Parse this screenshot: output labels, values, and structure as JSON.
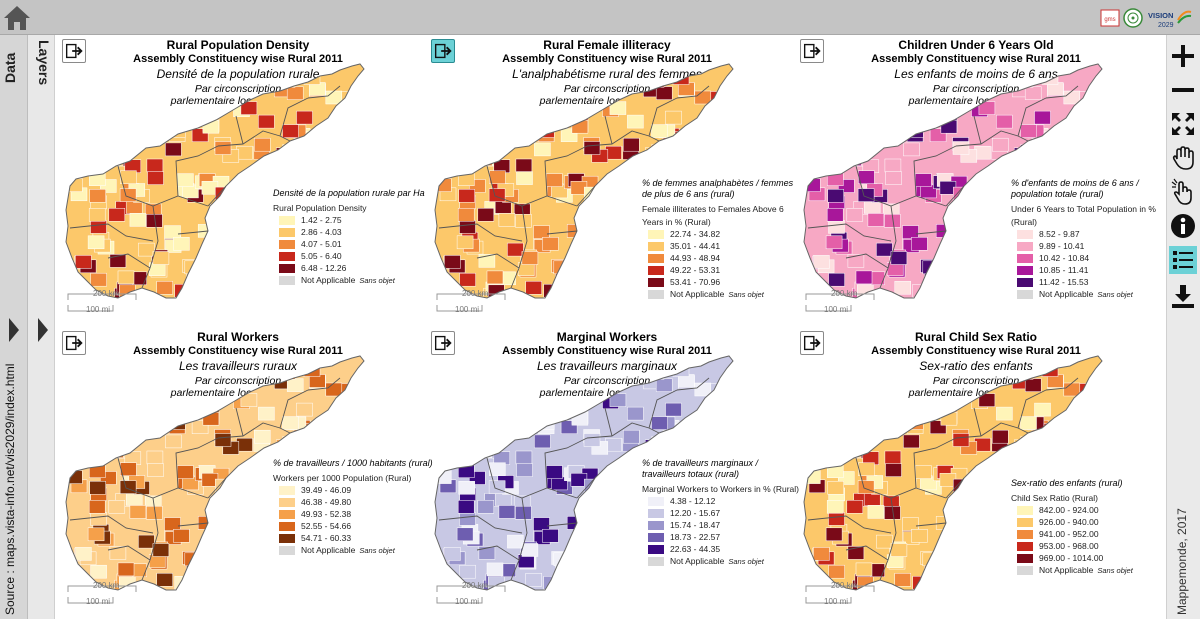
{
  "header": {
    "home_icon": "home-icon",
    "logos": [
      "gms-logo",
      "andhra-pradesh-emblem",
      "vision-2029-logo"
    ],
    "vision_label": "VISION",
    "vision_year": "2029",
    "gms_label": "gms"
  },
  "left_sidebar": {
    "data_tab": "Data",
    "layers_tab": "Layers",
    "source": "Source : maps.vista-info.net/vis2029/index.html"
  },
  "right_toolbar": {
    "tools": [
      "zoom-in-icon",
      "zoom-out-icon",
      "full-extent-icon",
      "pan-hand-icon",
      "identify-pointer-icon",
      "info-icon",
      "legend-list-icon",
      "download-icon"
    ],
    "credit": "Mappemonde, 2017"
  },
  "scale_bar": {
    "km": "200 km",
    "mi": "100 mi"
  },
  "panels": [
    {
      "title": "Rural Population Density",
      "subtitle": "Assembly Constituency wise Rural 2011",
      "title_fr": "Densité de la population rurale",
      "by_fr_1": "Par circonscription",
      "by_fr_2": "parlementaire locale en 2011",
      "legend_fr": "Densité de la population rurale par Ha",
      "legend_en": "Rural Population Density",
      "classes": [
        "1.42 - 2.75",
        "2.86 - 4.03",
        "4.07 - 5.01",
        "5.05 - 6.40",
        "6.48 - 12.26"
      ],
      "colors": [
        "#fff5b8",
        "#fcc86a",
        "#f08a3c",
        "#c8281c",
        "#7a0a18"
      ],
      "na_label": "Not Applicable",
      "na_fr": "Sans objet",
      "active": false
    },
    {
      "title": "Rural Female illiteracy",
      "subtitle": "Assembly Constituency wise Rural 2011",
      "title_fr": "L'analphabétisme rural des femmes",
      "by_fr_1": "Par circonscription",
      "by_fr_2": "parlementaire locale en 2011",
      "legend_fr": "% de femmes analphabètes / femmes de plus de 6 ans (rural)",
      "legend_en": "Female illiterates to Females Above 6 Years in % (Rural)",
      "classes": [
        "22.74 - 34.82",
        "35.01 - 44.41",
        "44.93 - 48.94",
        "49.22 - 53.31",
        "53.41 - 70.96"
      ],
      "colors": [
        "#fff5b8",
        "#fcc86a",
        "#f08a3c",
        "#c8281c",
        "#7a0a18"
      ],
      "na_label": "Not Applicable",
      "na_fr": "Sans objet",
      "active": true
    },
    {
      "title": "Children Under 6 Years Old",
      "subtitle": "Assembly Constituency wise Rural 2011",
      "title_fr": "Les enfants de moins de 6 ans",
      "by_fr_1": "Par circonscription",
      "by_fr_2": "parlementaire locale en 2011",
      "legend_fr": "% d'enfants de moins de 6 ans / population totale (rural)",
      "legend_en": "Under 6 Years to Total Population in % (Rural)",
      "classes": [
        "8.52 - 9.87",
        "9.89 - 10.41",
        "10.42 - 10.84",
        "10.85 - 11.41",
        "11.42 - 15.53"
      ],
      "colors": [
        "#fde0e0",
        "#f7a8c4",
        "#e45fa8",
        "#a8179a",
        "#4a0a72"
      ],
      "na_label": "Not Applicable",
      "na_fr": "Sans objet",
      "active": false
    },
    {
      "title": "Rural Workers",
      "subtitle": "Assembly Constituency wise Rural 2011",
      "title_fr": "Les travailleurs ruraux",
      "by_fr_1": "Par circonscription",
      "by_fr_2": "parlementaire locale en 2011",
      "legend_fr": "% de travailleurs / 1000 habitants (rural)",
      "legend_en": "Workers per 1000 Population (Rural)",
      "classes": [
        "39.49 - 46.09",
        "46.38 - 49.80",
        "49.93 - 52.38",
        "52.55 - 54.66",
        "54.71 - 60.33"
      ],
      "colors": [
        "#fff2c8",
        "#fdcf8a",
        "#f5a04a",
        "#d8661c",
        "#7a3008"
      ],
      "na_label": "Not Applicable",
      "na_fr": "Sans objet",
      "active": false
    },
    {
      "title": "Marginal Workers",
      "subtitle": "Assembly Constituency wise Rural 2011",
      "title_fr": "Les travailleurs marginaux",
      "by_fr_1": "Par circonscription",
      "by_fr_2": "parlementaire locale en 2011",
      "legend_fr": "% de travailleurs marginaux / travailleurs totaux (rural)",
      "legend_en": "Marginal Workers to Workers in % (Rural)",
      "classes": [
        "4.38 - 12.12",
        "12.20 - 15.67",
        "15.74 - 18.47",
        "18.73 - 22.57",
        "22.63 - 44.35"
      ],
      "colors": [
        "#f0f0f8",
        "#c8c8e4",
        "#9a96cc",
        "#6e5eb0",
        "#3a0a82"
      ],
      "na_label": "Not Applicable",
      "na_fr": "Sans objet",
      "active": false
    },
    {
      "title": "Rural Child Sex Ratio",
      "subtitle": "Assembly Constituency wise Rural 2011",
      "title_fr": "Sex-ratio des enfants",
      "by_fr_1": "Par circonscription",
      "by_fr_2": "parlementaire locale en 2011",
      "legend_fr": "Sex-ratio des enfants (rural)",
      "legend_en": "Child Sex Ratio (Rural)",
      "classes": [
        "842.00 - 924.00",
        "926.00 - 940.00",
        "941.00 - 952.00",
        "953.00 - 968.00",
        "969.00 - 1014.00"
      ],
      "colors": [
        "#fff5b8",
        "#fcc86a",
        "#f08a3c",
        "#c8281c",
        "#7a0a18"
      ],
      "na_label": "Not Applicable",
      "na_fr": "Sans objet",
      "active": false
    }
  ],
  "na_color": "#d8d8d8"
}
